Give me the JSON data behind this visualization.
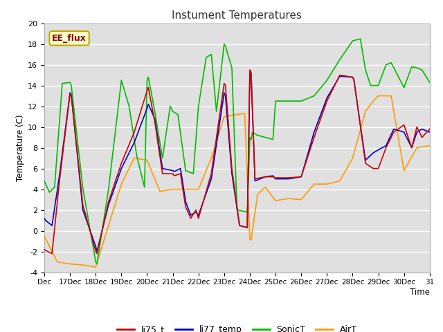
{
  "title": "Instument Temperatures",
  "xlabel": "Time",
  "ylabel": "Temperature (C)",
  "ylim": [
    -4,
    20
  ],
  "fig_facecolor": "#ffffff",
  "plot_bg_color": "#e0e0e0",
  "grid_color": "#ffffff",
  "annotation_text": "EE_flux",
  "annotation_bg": "#ffffcc",
  "annotation_border": "#bbaa00",
  "annotation_text_color": "#880000",
  "series": {
    "li75_t": {
      "color": "#cc0000",
      "linewidth": 1.2
    },
    "li77_temp": {
      "color": "#0000cc",
      "linewidth": 1.2
    },
    "SonicT": {
      "color": "#00bb00",
      "linewidth": 1.2
    },
    "AirT": {
      "color": "#ff9900",
      "linewidth": 1.2
    }
  },
  "xtick_labels": [
    "Dec",
    "17Dec",
    "18Dec",
    "19Dec",
    "20Dec",
    "21Dec",
    "22Dec",
    "23Dec",
    "24Dec",
    "25Dec",
    "26Dec",
    "27Dec",
    "28Dec",
    "29Dec",
    "30Dec",
    "31"
  ],
  "xtick_positions": [
    0,
    1,
    2,
    3,
    4,
    5,
    6,
    7,
    8,
    9,
    10,
    11,
    12,
    13,
    14,
    15
  ],
  "ytick_positions": [
    -4,
    -2,
    0,
    2,
    4,
    6,
    8,
    10,
    12,
    14,
    16,
    18,
    20
  ],
  "li75_t_x": [
    0.0,
    0.05,
    0.3,
    0.6,
    1.0,
    1.05,
    1.5,
    2.0,
    2.05,
    2.5,
    3.0,
    3.5,
    4.0,
    4.05,
    4.3,
    4.6,
    5.0,
    5.05,
    5.3,
    5.5,
    5.7,
    5.9,
    6.0,
    6.5,
    7.0,
    7.05,
    7.3,
    7.6,
    7.9,
    8.0,
    8.05,
    8.2,
    8.4,
    8.6,
    8.9,
    9.0,
    9.5,
    10.0,
    10.5,
    11.0,
    11.5,
    12.0,
    12.05,
    12.5,
    12.8,
    13.0,
    13.3,
    13.6,
    14.0,
    14.3,
    14.5,
    14.7,
    15.0
  ],
  "li75_t_y": [
    -1.8,
    -1.9,
    -2.2,
    5.0,
    13.2,
    13.0,
    2.5,
    -2.0,
    -2.2,
    2.8,
    6.5,
    9.5,
    13.5,
    13.8,
    10.5,
    5.5,
    5.5,
    5.3,
    5.5,
    2.3,
    1.2,
    2.0,
    1.2,
    5.5,
    14.2,
    14.0,
    6.0,
    0.5,
    0.3,
    15.5,
    15.3,
    5.0,
    5.1,
    5.2,
    5.2,
    5.1,
    5.1,
    5.2,
    9.0,
    12.5,
    15.0,
    14.8,
    14.6,
    6.5,
    6.0,
    6.0,
    8.0,
    9.5,
    10.2,
    8.0,
    10.0,
    9.0,
    9.8
  ],
  "li77_temp_x": [
    0.0,
    0.05,
    0.3,
    0.6,
    1.0,
    1.05,
    1.5,
    2.0,
    2.05,
    2.5,
    3.0,
    3.5,
    4.0,
    4.05,
    4.3,
    4.6,
    5.0,
    5.05,
    5.3,
    5.5,
    5.7,
    5.9,
    6.0,
    6.5,
    7.0,
    7.05,
    7.3,
    7.6,
    7.9,
    8.0,
    8.05,
    8.2,
    8.4,
    8.6,
    8.9,
    9.0,
    9.5,
    10.0,
    10.5,
    11.0,
    11.5,
    12.0,
    12.05,
    12.5,
    12.8,
    13.0,
    13.3,
    13.6,
    14.0,
    14.3,
    14.5,
    14.7,
    15.0
  ],
  "li77_temp_y": [
    1.2,
    1.0,
    0.5,
    5.5,
    13.3,
    13.1,
    2.0,
    -1.5,
    -2.0,
    2.5,
    6.0,
    8.5,
    11.8,
    12.2,
    10.8,
    6.0,
    5.8,
    5.7,
    6.0,
    2.8,
    1.5,
    1.8,
    1.5,
    5.0,
    13.3,
    13.0,
    5.5,
    0.5,
    0.3,
    15.2,
    15.0,
    4.8,
    5.0,
    5.2,
    5.3,
    5.0,
    5.0,
    5.2,
    9.5,
    12.8,
    14.9,
    14.8,
    14.5,
    6.8,
    7.5,
    7.8,
    8.2,
    9.8,
    9.5,
    8.0,
    9.5,
    9.8,
    9.5
  ],
  "SonicT_x": [
    0.0,
    0.2,
    0.4,
    0.7,
    1.0,
    1.05,
    1.5,
    2.0,
    2.05,
    2.5,
    3.0,
    3.3,
    3.6,
    3.9,
    4.0,
    4.05,
    4.3,
    4.6,
    4.9,
    5.0,
    5.2,
    5.5,
    5.8,
    6.0,
    6.3,
    6.5,
    6.7,
    7.0,
    7.05,
    7.3,
    7.5,
    7.9,
    8.0,
    8.05,
    8.1,
    8.3,
    8.6,
    8.9,
    9.0,
    9.3,
    9.5,
    10.0,
    10.5,
    11.0,
    11.5,
    12.0,
    12.3,
    12.5,
    12.7,
    13.0,
    13.3,
    13.5,
    14.0,
    14.3,
    14.5,
    14.7,
    15.0
  ],
  "SonicT_y": [
    4.8,
    3.7,
    4.2,
    14.2,
    14.3,
    14.0,
    4.1,
    -3.0,
    -3.2,
    4.0,
    14.5,
    12.0,
    7.2,
    4.2,
    14.5,
    14.8,
    11.5,
    7.0,
    12.0,
    11.5,
    11.2,
    5.8,
    5.5,
    12.0,
    16.7,
    17.0,
    11.5,
    18.0,
    17.8,
    15.7,
    2.0,
    1.8,
    9.0,
    8.8,
    9.5,
    9.2,
    9.0,
    8.8,
    12.5,
    12.5,
    12.5,
    12.5,
    13.0,
    14.5,
    16.5,
    18.3,
    18.5,
    15.5,
    14.0,
    14.0,
    16.0,
    16.2,
    13.8,
    15.8,
    15.7,
    15.5,
    14.3
  ],
  "AirT_x": [
    0.0,
    0.5,
    1.0,
    1.5,
    2.0,
    2.5,
    3.0,
    3.5,
    4.0,
    4.5,
    5.0,
    5.5,
    6.0,
    6.5,
    7.0,
    7.5,
    7.8,
    8.0,
    8.05,
    8.3,
    8.6,
    9.0,
    9.5,
    10.0,
    10.5,
    11.0,
    11.5,
    12.0,
    12.5,
    12.8,
    13.0,
    13.5,
    14.0,
    14.5,
    15.0
  ],
  "AirT_y": [
    -0.5,
    -3.0,
    -3.2,
    -3.3,
    -3.5,
    0.5,
    4.5,
    7.0,
    6.8,
    3.8,
    4.0,
    4.0,
    4.0,
    7.0,
    11.0,
    11.2,
    11.3,
    -0.8,
    -0.9,
    3.5,
    4.2,
    2.9,
    3.1,
    3.0,
    4.5,
    4.5,
    4.8,
    7.0,
    11.5,
    12.5,
    13.0,
    13.0,
    5.8,
    8.0,
    8.2
  ]
}
